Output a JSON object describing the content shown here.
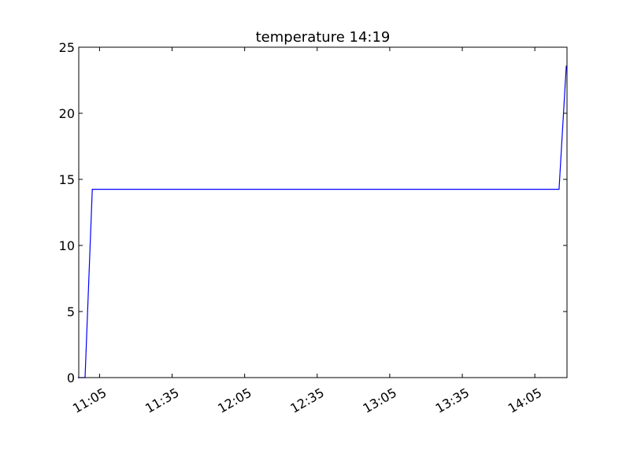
{
  "chart_data": {
    "type": "line",
    "title": "temperature  14:19",
    "xlabel": "",
    "ylabel": "",
    "x_ticks": [
      "11:05",
      "11:35",
      "12:05",
      "12:35",
      "13:05",
      "13:35",
      "14:05"
    ],
    "x_tick_minutes": [
      665,
      695,
      725,
      755,
      785,
      815,
      845
    ],
    "xlim_minutes": [
      656.4,
      858.3
    ],
    "ylim": [
      0,
      25
    ],
    "y_ticks": [
      0,
      5,
      10,
      15,
      20,
      25
    ],
    "grid": false,
    "series": [
      {
        "color": "#0000ff",
        "points": [
          {
            "x": "10:56",
            "y": 0
          },
          {
            "x": "10:59",
            "y": 0
          },
          {
            "x": "11:02",
            "y": 14.25
          },
          {
            "x": "14:15",
            "y": 14.25
          },
          {
            "x": "14:18",
            "y": 23.6
          }
        ]
      }
    ]
  }
}
